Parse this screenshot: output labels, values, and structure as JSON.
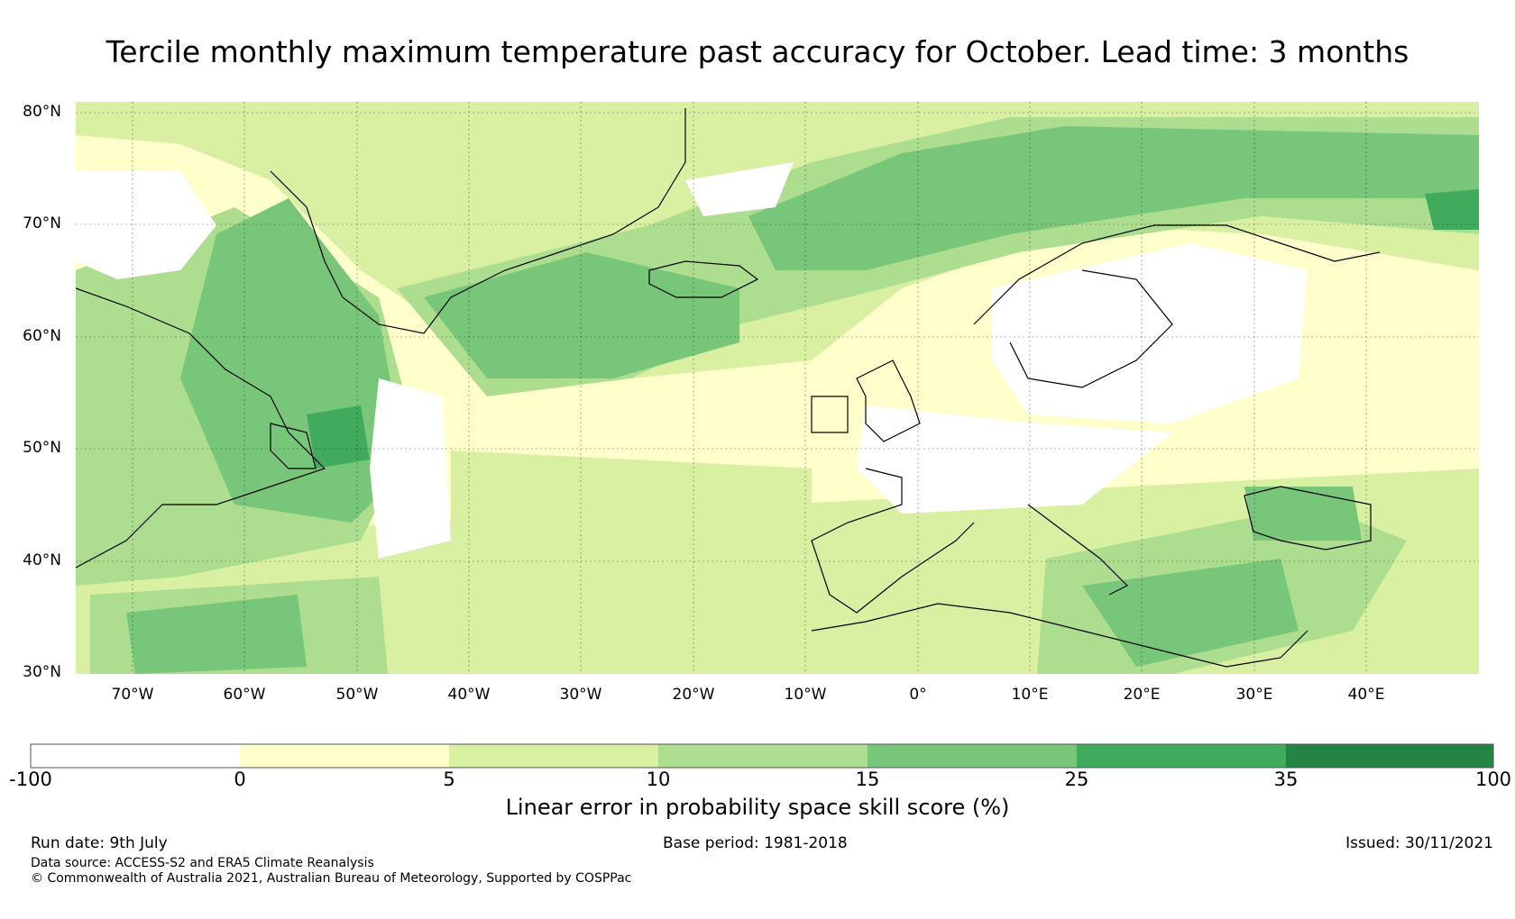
{
  "title": "Tercile monthly maximum temperature past accuracy for October. Lead time: 3 months",
  "map": {
    "lat_labels": [
      "80°N",
      "70°N",
      "60°N",
      "50°N",
      "40°N",
      "30°N"
    ],
    "lon_labels": [
      "70°W",
      "60°W",
      "50°W",
      "40°W",
      "30°W",
      "20°W",
      "10°W",
      "0°",
      "10°E",
      "20°E",
      "30°E",
      "40°E"
    ],
    "lat_range": [
      30,
      81
    ],
    "lon_range": [
      -75,
      50
    ]
  },
  "colorbar": {
    "ticks": [
      "-100",
      "0",
      "5",
      "10",
      "15",
      "25",
      "35",
      "100"
    ],
    "colors": [
      "#ffffff",
      "#ffffcc",
      "#d9f0a3",
      "#addd8e",
      "#78c679",
      "#41ab5d",
      "#238443"
    ],
    "label": "Linear error in probability space skill score (%)"
  },
  "footer": {
    "run_date": "Run date: 9th July",
    "base_period": "Base period: 1981-2018",
    "issued": "Issued: 30/11/2021",
    "data_source": "Data source: ACCESS-S2 and ERA5 Climate Reanalysis",
    "copyright": "© Commonwealth of Australia 2021, Australian Bureau of Meteorology, Supported by COSPPac"
  }
}
